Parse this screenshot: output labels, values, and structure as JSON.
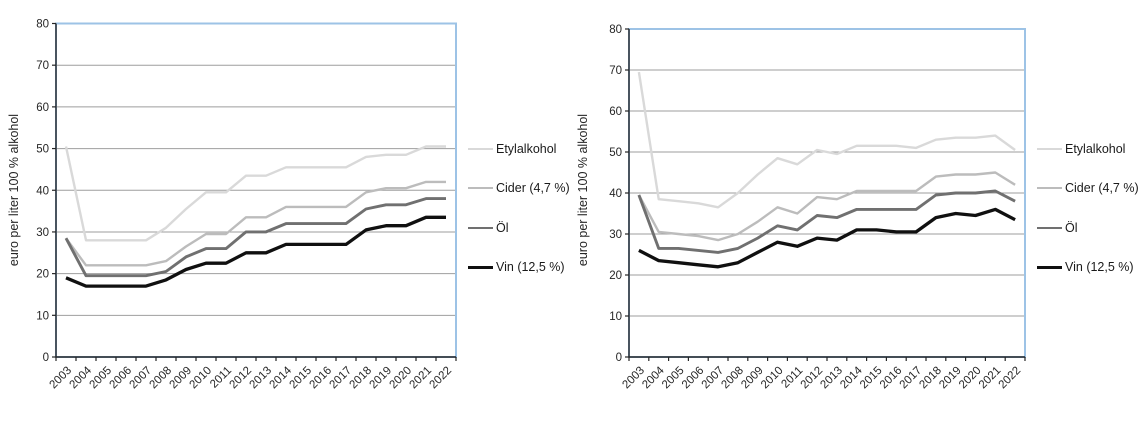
{
  "figure": {
    "background": "#ffffff",
    "plot_border_color": "#9dc3e6",
    "gridline_color": "#9e9e9e",
    "axis_color": "#262626",
    "text_color": "#262626"
  },
  "chart_data": [
    {
      "type": "line",
      "title": "",
      "xlabel": "",
      "ylabel": "euro per liter 100 % alkohol",
      "ylim": [
        0,
        80
      ],
      "ytick_step": 10,
      "ytick_labels": [
        "0",
        "10",
        "20",
        "30",
        "40",
        "50",
        "60",
        "70",
        "80"
      ],
      "grid": "horizontal",
      "legend_position": "right",
      "categories": [
        "2003",
        "2004",
        "2005",
        "2006",
        "2007",
        "2008",
        "2009",
        "2010",
        "2011",
        "2012",
        "2013",
        "2014",
        "2015",
        "2016",
        "2017",
        "2018",
        "2019",
        "2020",
        "2021",
        "2022"
      ],
      "series": [
        {
          "name": "Etylalkohol",
          "color": "#d9d9d9",
          "values": [
            50.5,
            28,
            28,
            28,
            28,
            31,
            35.5,
            39.5,
            39.5,
            43.5,
            43.5,
            45.5,
            45.5,
            45.5,
            45.5,
            48,
            48.5,
            48.5,
            50.5,
            50.5
          ]
        },
        {
          "name": "Cider (4,7 %)",
          "color": "#bcbcbc",
          "values": [
            28.5,
            22,
            22,
            22,
            22,
            23,
            26.5,
            29.5,
            29.5,
            33.5,
            33.5,
            36,
            36,
            36,
            36,
            39.5,
            40.5,
            40.5,
            42,
            42
          ]
        },
        {
          "name": "Öl",
          "color": "#707070",
          "values": [
            28.5,
            19.5,
            19.5,
            19.5,
            19.5,
            20.5,
            24,
            26,
            26,
            30,
            30,
            32,
            32,
            32,
            32,
            35.5,
            36.5,
            36.5,
            38,
            38
          ]
        },
        {
          "name": "Vin (12,5 %)",
          "color": "#101010",
          "values": [
            19,
            17,
            17,
            17,
            17,
            18.5,
            21,
            22.5,
            22.5,
            25,
            25,
            27,
            27,
            27,
            27,
            30.5,
            31.5,
            31.5,
            33.5,
            33.5
          ]
        }
      ]
    },
    {
      "type": "line",
      "title": "",
      "xlabel": "",
      "ylabel": "euro per liter 100 % alkohol",
      "ylim": [
        0,
        80
      ],
      "ytick_step": 10,
      "ytick_labels": [
        "0",
        "10",
        "20",
        "30",
        "40",
        "50",
        "60",
        "70",
        "80"
      ],
      "grid": "horizontal",
      "legend_position": "right",
      "categories": [
        "2003",
        "2004",
        "2005",
        "2006",
        "2007",
        "2008",
        "2009",
        "2010",
        "2011",
        "2012",
        "2013",
        "2014",
        "2015",
        "2016",
        "2017",
        "2018",
        "2019",
        "2020",
        "2021",
        "2022"
      ],
      "series": [
        {
          "name": "Etylalkohol",
          "color": "#d9d9d9",
          "values": [
            69.5,
            38.5,
            38,
            37.5,
            36.5,
            40,
            44.5,
            48.5,
            47,
            50.5,
            49.5,
            51.5,
            51.5,
            51.5,
            51,
            53,
            53.5,
            53.5,
            54,
            50.5
          ]
        },
        {
          "name": "Cider (4,7 %)",
          "color": "#bcbcbc",
          "values": [
            39.5,
            30.5,
            30,
            29.5,
            28.5,
            30,
            33,
            36.5,
            35,
            39,
            38.5,
            40.5,
            40.5,
            40.5,
            40.5,
            44,
            44.5,
            44.5,
            45,
            42
          ]
        },
        {
          "name": "Öl",
          "color": "#707070",
          "values": [
            39.5,
            26.5,
            26.5,
            26,
            25.5,
            26.5,
            29,
            32,
            31,
            34.5,
            34,
            36,
            36,
            36,
            36,
            39.5,
            40,
            40,
            40.5,
            38
          ]
        },
        {
          "name": "Vin (12,5 %)",
          "color": "#101010",
          "values": [
            26,
            23.5,
            23,
            22.5,
            22,
            23,
            25.5,
            28,
            27,
            29,
            28.5,
            31,
            31,
            30.5,
            30.5,
            34,
            35,
            34.5,
            36,
            33.5
          ]
        }
      ]
    }
  ]
}
